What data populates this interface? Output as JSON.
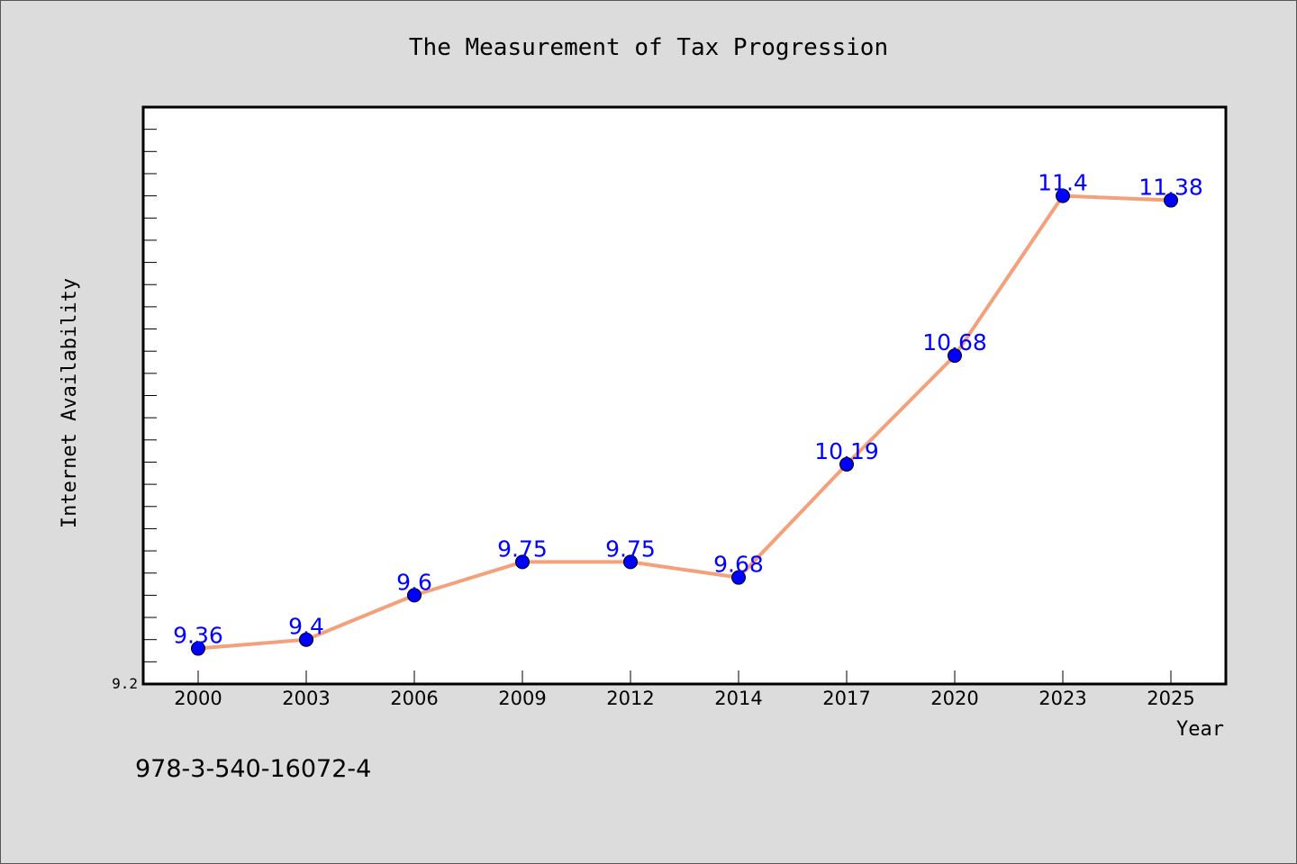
{
  "chart_data": {
    "type": "line",
    "title": "The Measurement of Tax Progression",
    "xlabel": "Year",
    "ylabel": "Internet Availability",
    "categories": [
      "2000",
      "2003",
      "2006",
      "2009",
      "2012",
      "2014",
      "2017",
      "2020",
      "2023",
      "2025"
    ],
    "series": [
      {
        "values": [
          9.36,
          9.4,
          9.6,
          9.75,
          9.75,
          9.68,
          10.19,
          10.68,
          11.4,
          11.38
        ],
        "labels": [
          "9.36",
          "9.4",
          "9.6",
          "9.75",
          "9.75",
          "9.68",
          "10.19",
          "10.68",
          "11.4",
          "11.38"
        ],
        "line_color": "#f4a07a",
        "marker_color": "#0000ff"
      }
    ],
    "ylim": [
      9.2,
      11.8
    ],
    "yticks": [
      9.2
    ],
    "legend": "none",
    "grid": false
  },
  "footnote": "978-3-540-16072-4"
}
